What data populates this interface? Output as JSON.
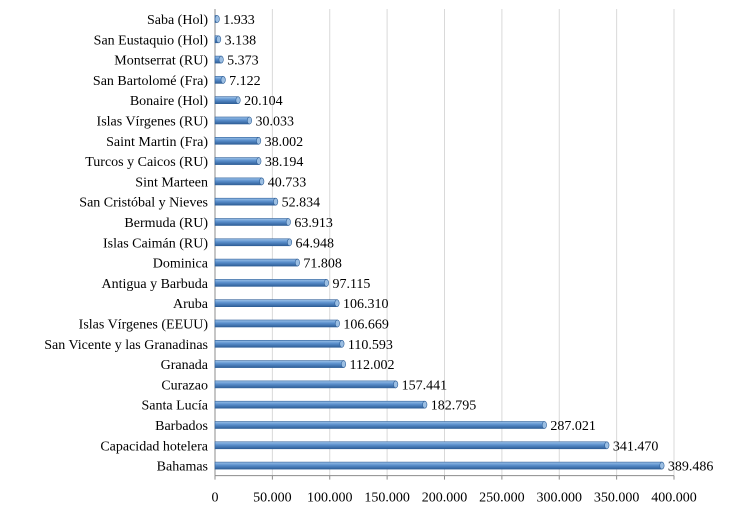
{
  "chart_data": {
    "type": "bar",
    "orientation": "horizontal",
    "style": "3d-cylinder",
    "bar_color": "#4f81bd",
    "grid": true,
    "legend": "none",
    "title": "",
    "xlabel": "",
    "ylabel": "",
    "xlim": [
      0,
      400000
    ],
    "tick_values": [
      0,
      50000,
      100000,
      150000,
      200000,
      250000,
      300000,
      350000,
      400000
    ],
    "tick_labels": [
      "0",
      "50.000",
      "100.000",
      "150.000",
      "200.000",
      "250.000",
      "300.000",
      "350.000",
      "400.000"
    ],
    "categories": [
      "Saba (Hol)",
      "San Eustaquio (Hol)",
      "Montserrat (RU)",
      "San Bartolomé (Fra)",
      "Bonaire (Hol)",
      "Islas Vírgenes (RU)",
      "Saint Martin (Fra)",
      "Turcos y Caicos (RU)",
      "Sint Marteen",
      "San Cristóbal y Nieves",
      "Bermuda (RU)",
      "Islas Caimán (RU)",
      "Dominica",
      "Antigua y Barbuda",
      "Aruba",
      "Islas Vírgenes (EEUU)",
      "San Vicente y las Granadinas",
      "Granada",
      "Curazao",
      "Santa Lucía",
      "Barbados",
      "Capacidad hotelera",
      "Bahamas"
    ],
    "values": [
      1933,
      3138,
      5373,
      7122,
      20104,
      30033,
      38002,
      38194,
      40733,
      52834,
      63913,
      64948,
      71808,
      97115,
      106310,
      106669,
      110593,
      112002,
      157441,
      182795,
      287021,
      341470,
      389486
    ],
    "value_labels": [
      "1.933",
      "3.138",
      "5.373",
      "7.122",
      "20.104",
      "30.033",
      "38.002",
      "38.194",
      "40.733",
      "52.834",
      "63.913",
      "64.948",
      "71.808",
      "97.115",
      "106.310",
      "106.669",
      "110.593",
      "112.002",
      "157.441",
      "182.795",
      "287.021",
      "341.470",
      "389.486"
    ]
  }
}
